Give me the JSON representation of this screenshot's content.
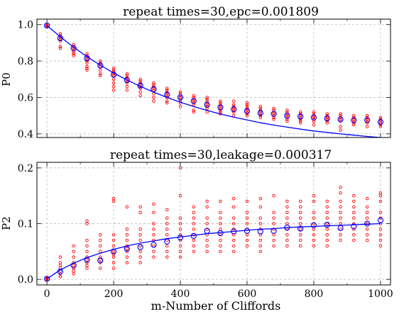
{
  "chart_data": [
    {
      "type": "scatter",
      "title": "repeat times=30,epc=0.001809",
      "xlabel": "",
      "ylabel": "P0",
      "xlim": [
        -30,
        1030
      ],
      "ylim": [
        0.38,
        1.03
      ],
      "yticks": [
        0.4,
        0.6,
        0.8,
        1.0
      ],
      "ytick_labels": [
        "0.4",
        "0.6",
        "0.8",
        "1.0"
      ],
      "xticks": [
        0,
        200,
        400,
        600,
        800,
        1000
      ],
      "xtick_labels": [],
      "grid": true,
      "colors": {
        "samples": "#ff0000",
        "mean": "#0000ff",
        "fit": "#0000ff"
      },
      "x": [
        0,
        40,
        80,
        120,
        160,
        200,
        240,
        280,
        320,
        360,
        400,
        440,
        480,
        520,
        560,
        600,
        640,
        680,
        720,
        760,
        800,
        840,
        880,
        920,
        960,
        1000
      ],
      "series": [
        {
          "role": "samples",
          "marker": "small open circle",
          "spreads": [
            [
              0.995,
              0.993,
              0.997,
              0.99
            ],
            [
              0.95,
              0.94,
              0.93,
              0.92,
              0.91,
              0.88,
              0.87
            ],
            [
              0.89,
              0.88,
              0.87,
              0.86,
              0.85,
              0.84,
              0.83
            ],
            [
              0.84,
              0.83,
              0.82,
              0.81,
              0.8,
              0.79,
              0.77,
              0.76,
              0.75
            ],
            [
              0.8,
              0.79,
              0.78,
              0.77,
              0.75,
              0.73,
              0.72
            ],
            [
              0.76,
              0.75,
              0.74,
              0.73,
              0.72,
              0.7,
              0.68,
              0.66,
              0.64
            ],
            [
              0.73,
              0.72,
              0.71,
              0.7,
              0.69,
              0.68,
              0.66,
              0.64
            ],
            [
              0.7,
              0.69,
              0.68,
              0.67,
              0.66,
              0.65,
              0.63,
              0.61
            ],
            [
              0.68,
              0.67,
              0.66,
              0.65,
              0.64,
              0.62,
              0.6,
              0.58
            ],
            [
              0.65,
              0.64,
              0.63,
              0.62,
              0.61,
              0.6,
              0.58,
              0.57
            ],
            [
              0.63,
              0.62,
              0.61,
              0.6,
              0.59,
              0.58,
              0.57,
              0.55
            ],
            [
              0.61,
              0.6,
              0.59,
              0.58,
              0.57,
              0.56,
              0.53,
              0.52
            ],
            [
              0.6,
              0.59,
              0.58,
              0.57,
              0.56,
              0.55,
              0.54,
              0.52
            ],
            [
              0.58,
              0.57,
              0.56,
              0.55,
              0.54,
              0.53,
              0.52,
              0.51
            ],
            [
              0.58,
              0.56,
              0.55,
              0.54,
              0.53,
              0.52,
              0.5
            ],
            [
              0.57,
              0.56,
              0.55,
              0.54,
              0.53,
              0.52,
              0.51,
              0.5
            ],
            [
              0.55,
              0.54,
              0.53,
              0.52,
              0.51,
              0.5,
              0.49
            ],
            [
              0.54,
              0.53,
              0.52,
              0.51,
              0.5,
              0.49,
              0.48
            ],
            [
              0.53,
              0.52,
              0.51,
              0.5,
              0.49,
              0.48,
              0.47
            ],
            [
              0.52,
              0.51,
              0.5,
              0.49,
              0.48,
              0.47,
              0.46
            ],
            [
              0.52,
              0.51,
              0.5,
              0.49,
              0.48,
              0.47,
              0.45
            ],
            [
              0.51,
              0.5,
              0.49,
              0.48,
              0.47,
              0.46
            ],
            [
              0.51,
              0.5,
              0.49,
              0.48,
              0.47,
              0.44,
              0.42
            ],
            [
              0.5,
              0.49,
              0.48,
              0.47,
              0.46,
              0.45
            ],
            [
              0.5,
              0.49,
              0.48,
              0.47,
              0.46,
              0.44
            ],
            [
              0.49,
              0.48,
              0.47,
              0.46,
              0.45,
              0.44
            ]
          ]
        },
        {
          "role": "mean",
          "marker": "open circle",
          "values": [
            0.995,
            0.925,
            0.87,
            0.815,
            0.775,
            0.725,
            0.695,
            0.665,
            0.645,
            0.615,
            0.6,
            0.58,
            0.56,
            0.545,
            0.535,
            0.525,
            0.515,
            0.51,
            0.5,
            0.495,
            0.49,
            0.485,
            0.48,
            0.475,
            0.475,
            0.465
          ]
        },
        {
          "role": "fit",
          "style": "line",
          "values": [
            0.995,
            0.933,
            0.876,
            0.824,
            0.777,
            0.734,
            0.696,
            0.661,
            0.629,
            0.6,
            0.574,
            0.55,
            0.529,
            0.509,
            0.492,
            0.476,
            0.461,
            0.448,
            0.437,
            0.426,
            0.416,
            0.408,
            0.4,
            0.393,
            0.386,
            0.38
          ]
        }
      ]
    },
    {
      "type": "scatter",
      "title": "repeat times=30,leakage=0.000317",
      "xlabel": "m-Number of Cliffords",
      "ylabel": "P2",
      "xlim": [
        -30,
        1030
      ],
      "ylim": [
        -0.01,
        0.21
      ],
      "yticks": [
        0.0,
        0.1,
        0.2
      ],
      "ytick_labels": [
        "0.0",
        "0.1",
        "0.2"
      ],
      "xticks": [
        0,
        200,
        400,
        600,
        800,
        1000
      ],
      "xtick_labels": [
        "0",
        "200",
        "400",
        "600",
        "800",
        "1000"
      ],
      "grid": true,
      "colors": {
        "samples": "#ff0000",
        "mean": "#0000ff",
        "fit": "#0000ff"
      },
      "x": [
        0,
        40,
        80,
        120,
        160,
        200,
        240,
        280,
        320,
        360,
        400,
        440,
        480,
        520,
        560,
        600,
        640,
        680,
        720,
        760,
        800,
        840,
        880,
        920,
        960,
        1000
      ],
      "series": [
        {
          "role": "samples",
          "marker": "small open circle",
          "spreads": [
            [
              0.001,
              0.002,
              0.0,
              0.003
            ],
            [
              0.005,
              0.01,
              0.015,
              0.02,
              0.025,
              0.03,
              0.04,
              0.005
            ],
            [
              0.01,
              0.02,
              0.03,
              0.04,
              0.05,
              0.06,
              0.015,
              0.025
            ],
            [
              0.02,
              0.03,
              0.04,
              0.05,
              0.06,
              0.07,
              0.1,
              0.105,
              0.025,
              0.035
            ],
            [
              0.02,
              0.03,
              0.04,
              0.05,
              0.06,
              0.07,
              0.08,
              0.035
            ],
            [
              0.02,
              0.03,
              0.04,
              0.05,
              0.06,
              0.07,
              0.08,
              0.14,
              0.145,
              0.045
            ],
            [
              0.03,
              0.04,
              0.05,
              0.06,
              0.07,
              0.08,
              0.13,
              0.09,
              0.055
            ],
            [
              0.03,
              0.04,
              0.05,
              0.06,
              0.07,
              0.08,
              0.09,
              0.13,
              0.12
            ],
            [
              0.04,
              0.05,
              0.06,
              0.07,
              0.08,
              0.09,
              0.1,
              0.12,
              0.135
            ],
            [
              0.04,
              0.05,
              0.06,
              0.07,
              0.08,
              0.09,
              0.1,
              0.11,
              0.125
            ],
            [
              0.04,
              0.05,
              0.06,
              0.07,
              0.08,
              0.09,
              0.1,
              0.11,
              0.15,
              0.2
            ],
            [
              0.05,
              0.06,
              0.07,
              0.08,
              0.09,
              0.1,
              0.11,
              0.12,
              0.13
            ],
            [
              0.05,
              0.06,
              0.07,
              0.08,
              0.09,
              0.1,
              0.11,
              0.13,
              0.14
            ],
            [
              0.05,
              0.06,
              0.07,
              0.08,
              0.09,
              0.1,
              0.11,
              0.12,
              0.14
            ],
            [
              0.05,
              0.06,
              0.07,
              0.08,
              0.09,
              0.1,
              0.11,
              0.13,
              0.145
            ],
            [
              0.06,
              0.07,
              0.08,
              0.09,
              0.1,
              0.11,
              0.12,
              0.14
            ],
            [
              0.05,
              0.06,
              0.07,
              0.08,
              0.09,
              0.1,
              0.11,
              0.13,
              0.145
            ],
            [
              0.06,
              0.07,
              0.08,
              0.09,
              0.1,
              0.11,
              0.12,
              0.15
            ],
            [
              0.06,
              0.07,
              0.08,
              0.09,
              0.1,
              0.11,
              0.12,
              0.13,
              0.14
            ],
            [
              0.06,
              0.07,
              0.08,
              0.09,
              0.1,
              0.11,
              0.12,
              0.13,
              0.14
            ],
            [
              0.06,
              0.07,
              0.08,
              0.09,
              0.1,
              0.11,
              0.12,
              0.14,
              0.15
            ],
            [
              0.06,
              0.07,
              0.08,
              0.09,
              0.1,
              0.11,
              0.12,
              0.13,
              0.14
            ],
            [
              0.07,
              0.08,
              0.09,
              0.1,
              0.11,
              0.12,
              0.13,
              0.14,
              0.155,
              0.165
            ],
            [
              0.07,
              0.08,
              0.09,
              0.1,
              0.11,
              0.12,
              0.13,
              0.14,
              0.15
            ],
            [
              0.07,
              0.08,
              0.09,
              0.1,
              0.11,
              0.12,
              0.13,
              0.145
            ],
            [
              0.06,
              0.07,
              0.08,
              0.09,
              0.1,
              0.11,
              0.12,
              0.14,
              0.15,
              0.155
            ]
          ]
        },
        {
          "role": "mean",
          "marker": "open circle",
          "values": [
            0.001,
            0.014,
            0.025,
            0.035,
            0.034,
            0.05,
            0.055,
            0.058,
            0.062,
            0.068,
            0.075,
            0.078,
            0.087,
            0.083,
            0.086,
            0.087,
            0.086,
            0.087,
            0.093,
            0.091,
            0.097,
            0.098,
            0.092,
            0.095,
            0.1,
            0.106
          ]
        },
        {
          "role": "fit",
          "style": "line",
          "values": [
            0.001,
            0.017,
            0.029,
            0.039,
            0.047,
            0.054,
            0.06,
            0.065,
            0.069,
            0.073,
            0.076,
            0.079,
            0.082,
            0.084,
            0.086,
            0.088,
            0.09,
            0.091,
            0.093,
            0.094,
            0.095,
            0.096,
            0.097,
            0.098,
            0.099,
            0.1
          ]
        }
      ]
    }
  ]
}
